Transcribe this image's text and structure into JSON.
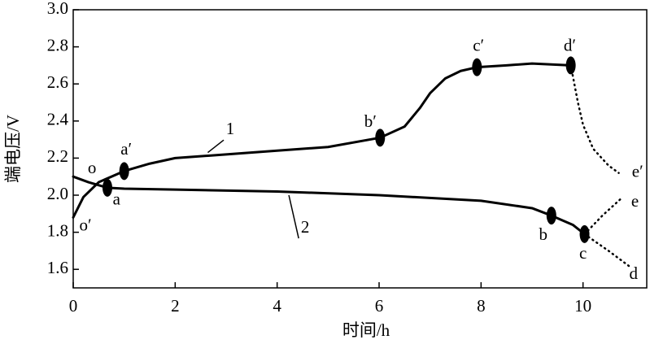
{
  "chart_data": {
    "type": "line",
    "x_label": "时间/h",
    "y_label": "端电压/V",
    "xlim": [
      0,
      11.25
    ],
    "ylim": [
      1.5,
      3.0
    ],
    "xticks": [
      0,
      2,
      4,
      6,
      8,
      10
    ],
    "yticks": [
      1.6,
      1.8,
      {
        "value": 2,
        "label": "2.0"
      },
      2.2,
      2.4,
      2.6,
      2.8,
      {
        "value": 3,
        "label": "3.0"
      }
    ],
    "series": [
      {
        "color": "#000000",
        "dash": "solid",
        "x": [
          0,
          0.2,
          0.5,
          1,
          1.5,
          2,
          3,
          4,
          5,
          6.02,
          6.5,
          6.8,
          7,
          7.3,
          7.6,
          7.92,
          8.5,
          9,
          9.76
        ],
        "values": [
          1.88,
          1.99,
          2.07,
          2.13,
          2.17,
          2.2,
          2.22,
          2.24,
          2.26,
          2.31,
          2.37,
          2.47,
          2.55,
          2.63,
          2.67,
          2.69,
          2.7,
          2.71,
          2.7
        ]
      },
      {
        "color": "#000000",
        "dash": "dotted",
        "x": [
          9.76,
          9.9,
          10,
          10.2,
          10.5,
          10.7
        ],
        "values": [
          2.7,
          2.5,
          2.38,
          2.25,
          2.16,
          2.12
        ]
      },
      {
        "color": "#000000",
        "dash": "solid",
        "x": [
          0,
          0.3,
          0.67,
          1,
          2,
          4,
          6,
          8,
          9,
          9.38,
          9.8,
          10.03
        ],
        "values": [
          2.1,
          2.07,
          2.04,
          2.035,
          2.03,
          2.02,
          2.0,
          1.97,
          1.93,
          1.89,
          1.84,
          1.79
        ]
      },
      {
        "color": "#000000",
        "dash": "dotted",
        "x": [
          10.03,
          10.5,
          10.94
        ],
        "values": [
          1.79,
          1.7,
          1.61
        ]
      },
      {
        "color": "#000000",
        "dash": "dotted",
        "x": [
          10.03,
          10.38,
          10.78
        ],
        "values": [
          1.79,
          1.89,
          1.99
        ]
      }
    ],
    "markers": {
      "x": [
        1,
        0.67,
        6.02,
        7.92,
        9.76,
        9.38,
        10.03
      ],
      "values": [
        2.13,
        2.04,
        2.31,
        2.69,
        2.7,
        1.89,
        1.79
      ]
    },
    "annotations": [
      {
        "text": "o",
        "x": 0.37,
        "y": 2.14
      },
      {
        "text": "o′",
        "x": 0.24,
        "y": 1.83
      },
      {
        "text": "a",
        "x": 0.85,
        "y": 1.97
      },
      {
        "text": "a′",
        "x": 1.04,
        "y": 2.24
      },
      {
        "text": "b′",
        "x": 5.83,
        "y": 2.39
      },
      {
        "text": "c′",
        "x": 7.95,
        "y": 2.8
      },
      {
        "text": "d′",
        "x": 9.74,
        "y": 2.8
      },
      {
        "text": "e′",
        "x": 11.07,
        "y": 2.12
      },
      {
        "text": "e",
        "x": 11.02,
        "y": 1.96
      },
      {
        "text": "b",
        "x": 9.22,
        "y": 1.78
      },
      {
        "text": "c",
        "x": 10.0,
        "y": 1.68
      },
      {
        "text": "d",
        "x": 10.99,
        "y": 1.57
      },
      {
        "text": "1",
        "x": 3.08,
        "y": 2.35,
        "xy": [
          2.64,
          2.23
        ]
      },
      {
        "text": "2",
        "x": 4.55,
        "y": 1.82,
        "xy": [
          4.23,
          2.0
        ]
      }
    ]
  }
}
